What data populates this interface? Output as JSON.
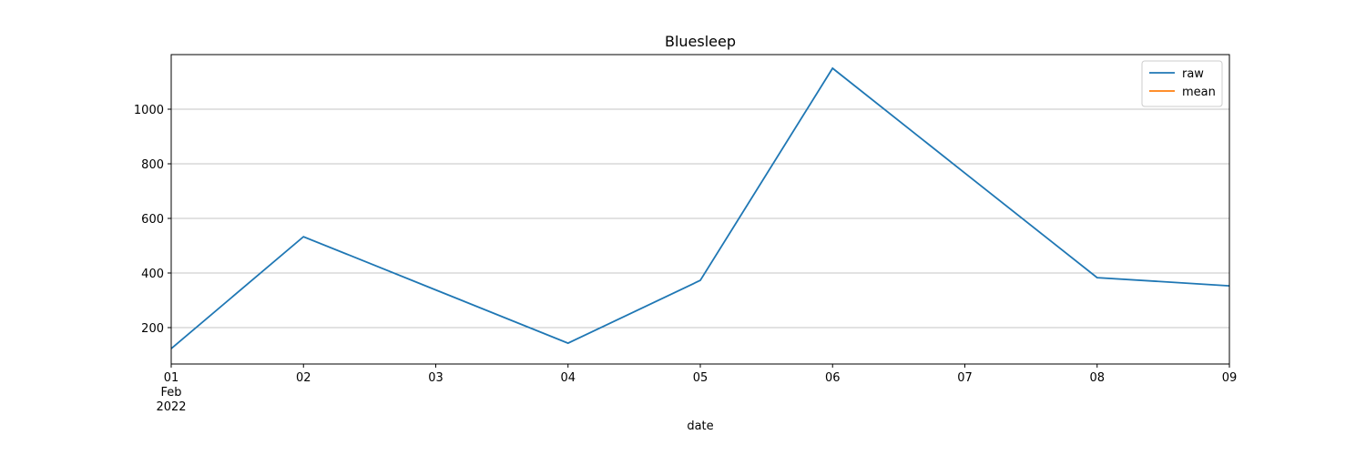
{
  "chart_data": {
    "type": "line",
    "title": "Bluesleep",
    "xlabel": "date",
    "x": [
      "2022-02-01",
      "2022-02-02",
      "2022-02-03",
      "2022-02-04",
      "2022-02-05",
      "2022-02-06",
      "2022-02-07",
      "2022-02-08",
      "2022-02-09"
    ],
    "series": [
      {
        "name": "raw",
        "color": "#1f77b4",
        "values": [
          123,
          533,
          338,
          143,
          373,
          1150,
          766,
          383,
          353
        ]
      },
      {
        "name": "mean",
        "color": "#ff7f0e",
        "values": [
          null,
          null,
          null,
          null,
          null,
          null,
          null,
          null,
          null
        ]
      }
    ],
    "xlim": [
      "2022-02-01",
      "2022-02-09"
    ],
    "xticks": [
      {
        "value": "2022-02-01",
        "label": [
          "01",
          "Feb",
          "2022"
        ]
      },
      {
        "value": "2022-02-02",
        "label": "02"
      },
      {
        "value": "2022-02-03",
        "label": "03"
      },
      {
        "value": "2022-02-04",
        "label": "04"
      },
      {
        "value": "2022-02-05",
        "label": "05"
      },
      {
        "value": "2022-02-06",
        "label": "06"
      },
      {
        "value": "2022-02-07",
        "label": "07"
      },
      {
        "value": "2022-02-08",
        "label": "08"
      },
      {
        "value": "2022-02-09",
        "label": "09"
      }
    ],
    "ylim": [
      66.7,
      1200
    ],
    "yticks": [
      200,
      400,
      600,
      800,
      1000
    ],
    "grid": "y",
    "legend": "upper right"
  }
}
